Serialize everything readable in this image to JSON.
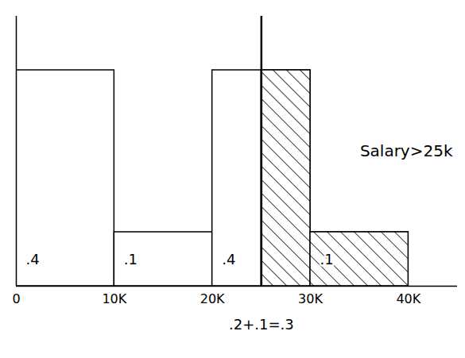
{
  "chart_data": {
    "type": "histogram",
    "bins": [
      0,
      10000,
      20000,
      30000,
      40000
    ],
    "values": [
      0.4,
      0.1,
      0.4,
      0.1
    ],
    "value_labels": [
      ".4",
      ".1",
      ".4",
      ".1"
    ],
    "data_labels": true,
    "color": "#ffffff",
    "xlim": [
      0,
      45000
    ],
    "xticks": [
      0,
      {
        "value": 10000,
        "label": "10K"
      },
      {
        "value": 20000,
        "label": "20K"
      },
      {
        "value": 30000,
        "label": "30K"
      },
      {
        "value": 40000,
        "label": "40K"
      }
    ],
    "ylim": [
      0,
      0.5
    ],
    "tick_labels": "x",
    "highlight": {
      "from": 25000,
      "label": "Salary>25k"
    },
    "note": ".2+.1=.3"
  }
}
